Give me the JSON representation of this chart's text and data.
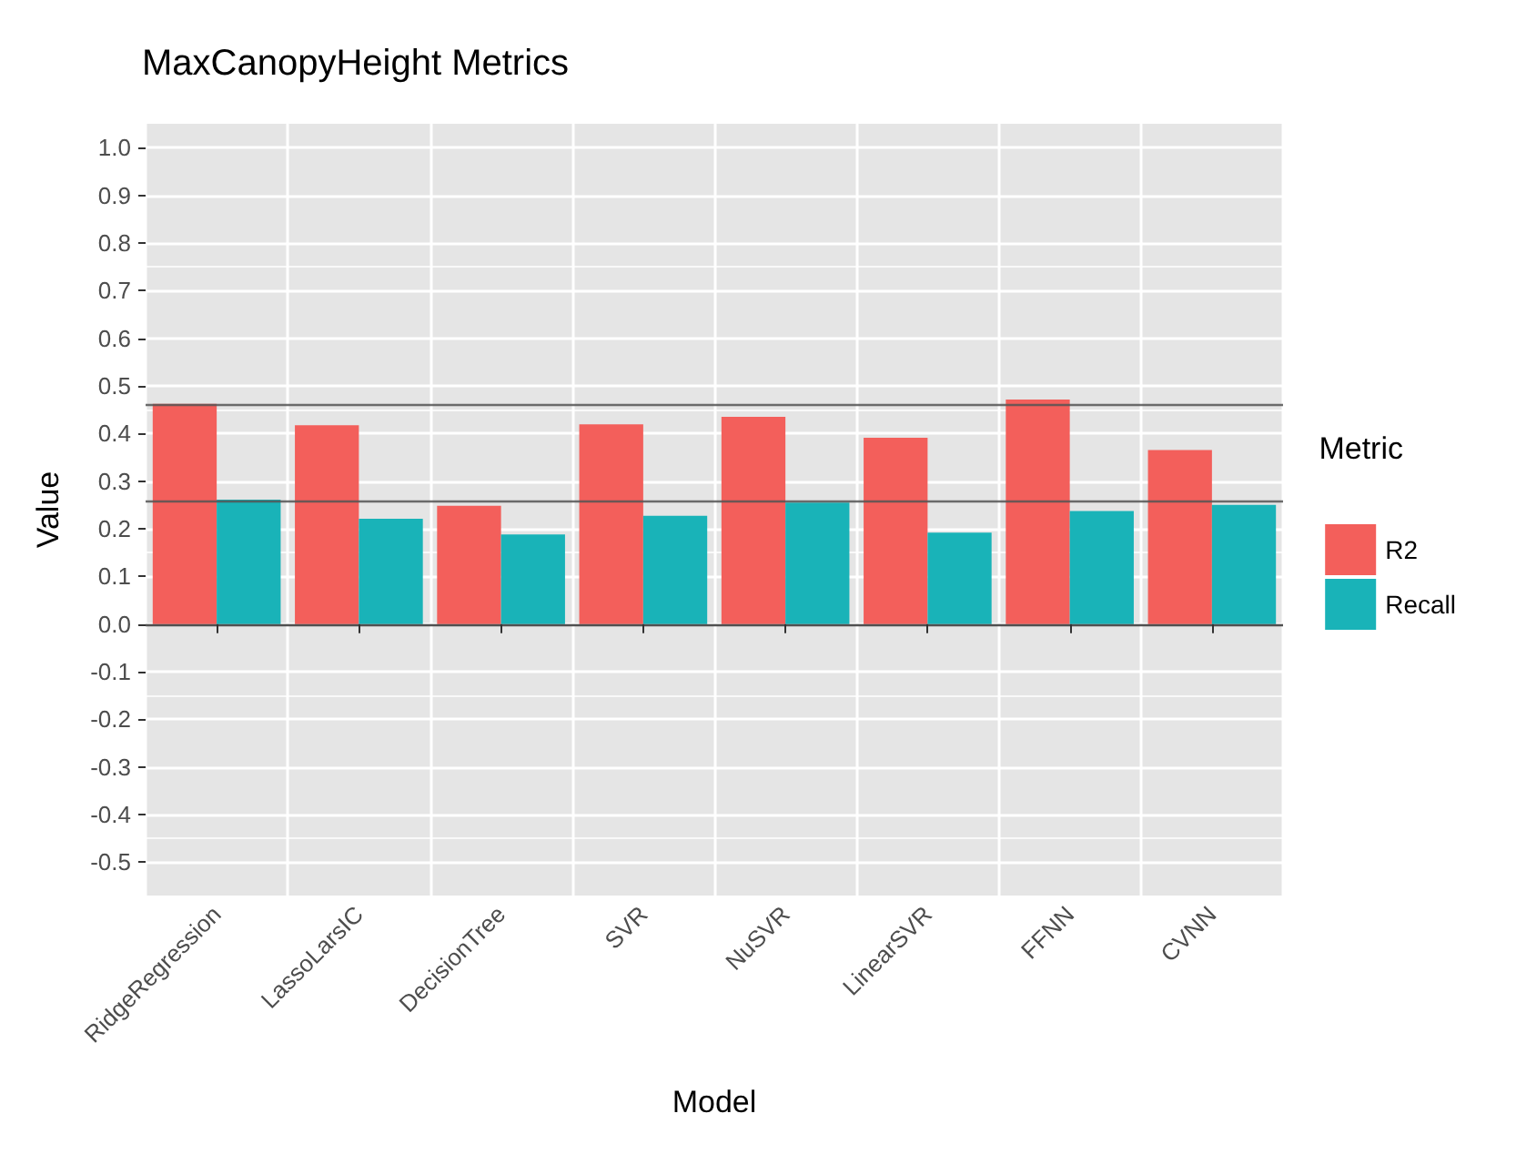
{
  "chart_data": {
    "type": "bar",
    "title": "MaxCanopyHeight Metrics",
    "xlabel": "Model",
    "ylabel": "Value",
    "legend_title": "Metric",
    "categories": [
      "RidgeRegression",
      "LassoLarsIC",
      "DecisionTree",
      "SVR",
      "NuSVR",
      "LinearSVR",
      "FFNN",
      "CVNN"
    ],
    "series": [
      {
        "name": "R2",
        "color": "#f35f5b",
        "values": [
          0.462,
          0.417,
          0.248,
          0.419,
          0.435,
          0.391,
          0.471,
          0.365
        ]
      },
      {
        "name": "Recall",
        "color": "#19b3b8",
        "values": [
          0.261,
          0.221,
          0.188,
          0.227,
          0.255,
          0.192,
          0.237,
          0.25
        ]
      }
    ],
    "ylim": [
      -0.57,
      1.05
    ],
    "yticks": [
      -0.5,
      -0.4,
      -0.3,
      -0.2,
      -0.1,
      {
        "value": 0,
        "label": "0.0"
      },
      0.1,
      0.2,
      0.3,
      0.4,
      0.5,
      0.6,
      0.7,
      0.8,
      0.9,
      {
        "value": 1,
        "label": "1.0"
      }
    ],
    "ref_lines": [
      {
        "axis": "y",
        "value": 0.462,
        "color": "#555555"
      },
      {
        "axis": "y",
        "value": 0.261,
        "color": "#555555"
      },
      {
        "axis": "y",
        "value": 0,
        "color": "#333333"
      }
    ],
    "grid": true,
    "legend": "right"
  }
}
